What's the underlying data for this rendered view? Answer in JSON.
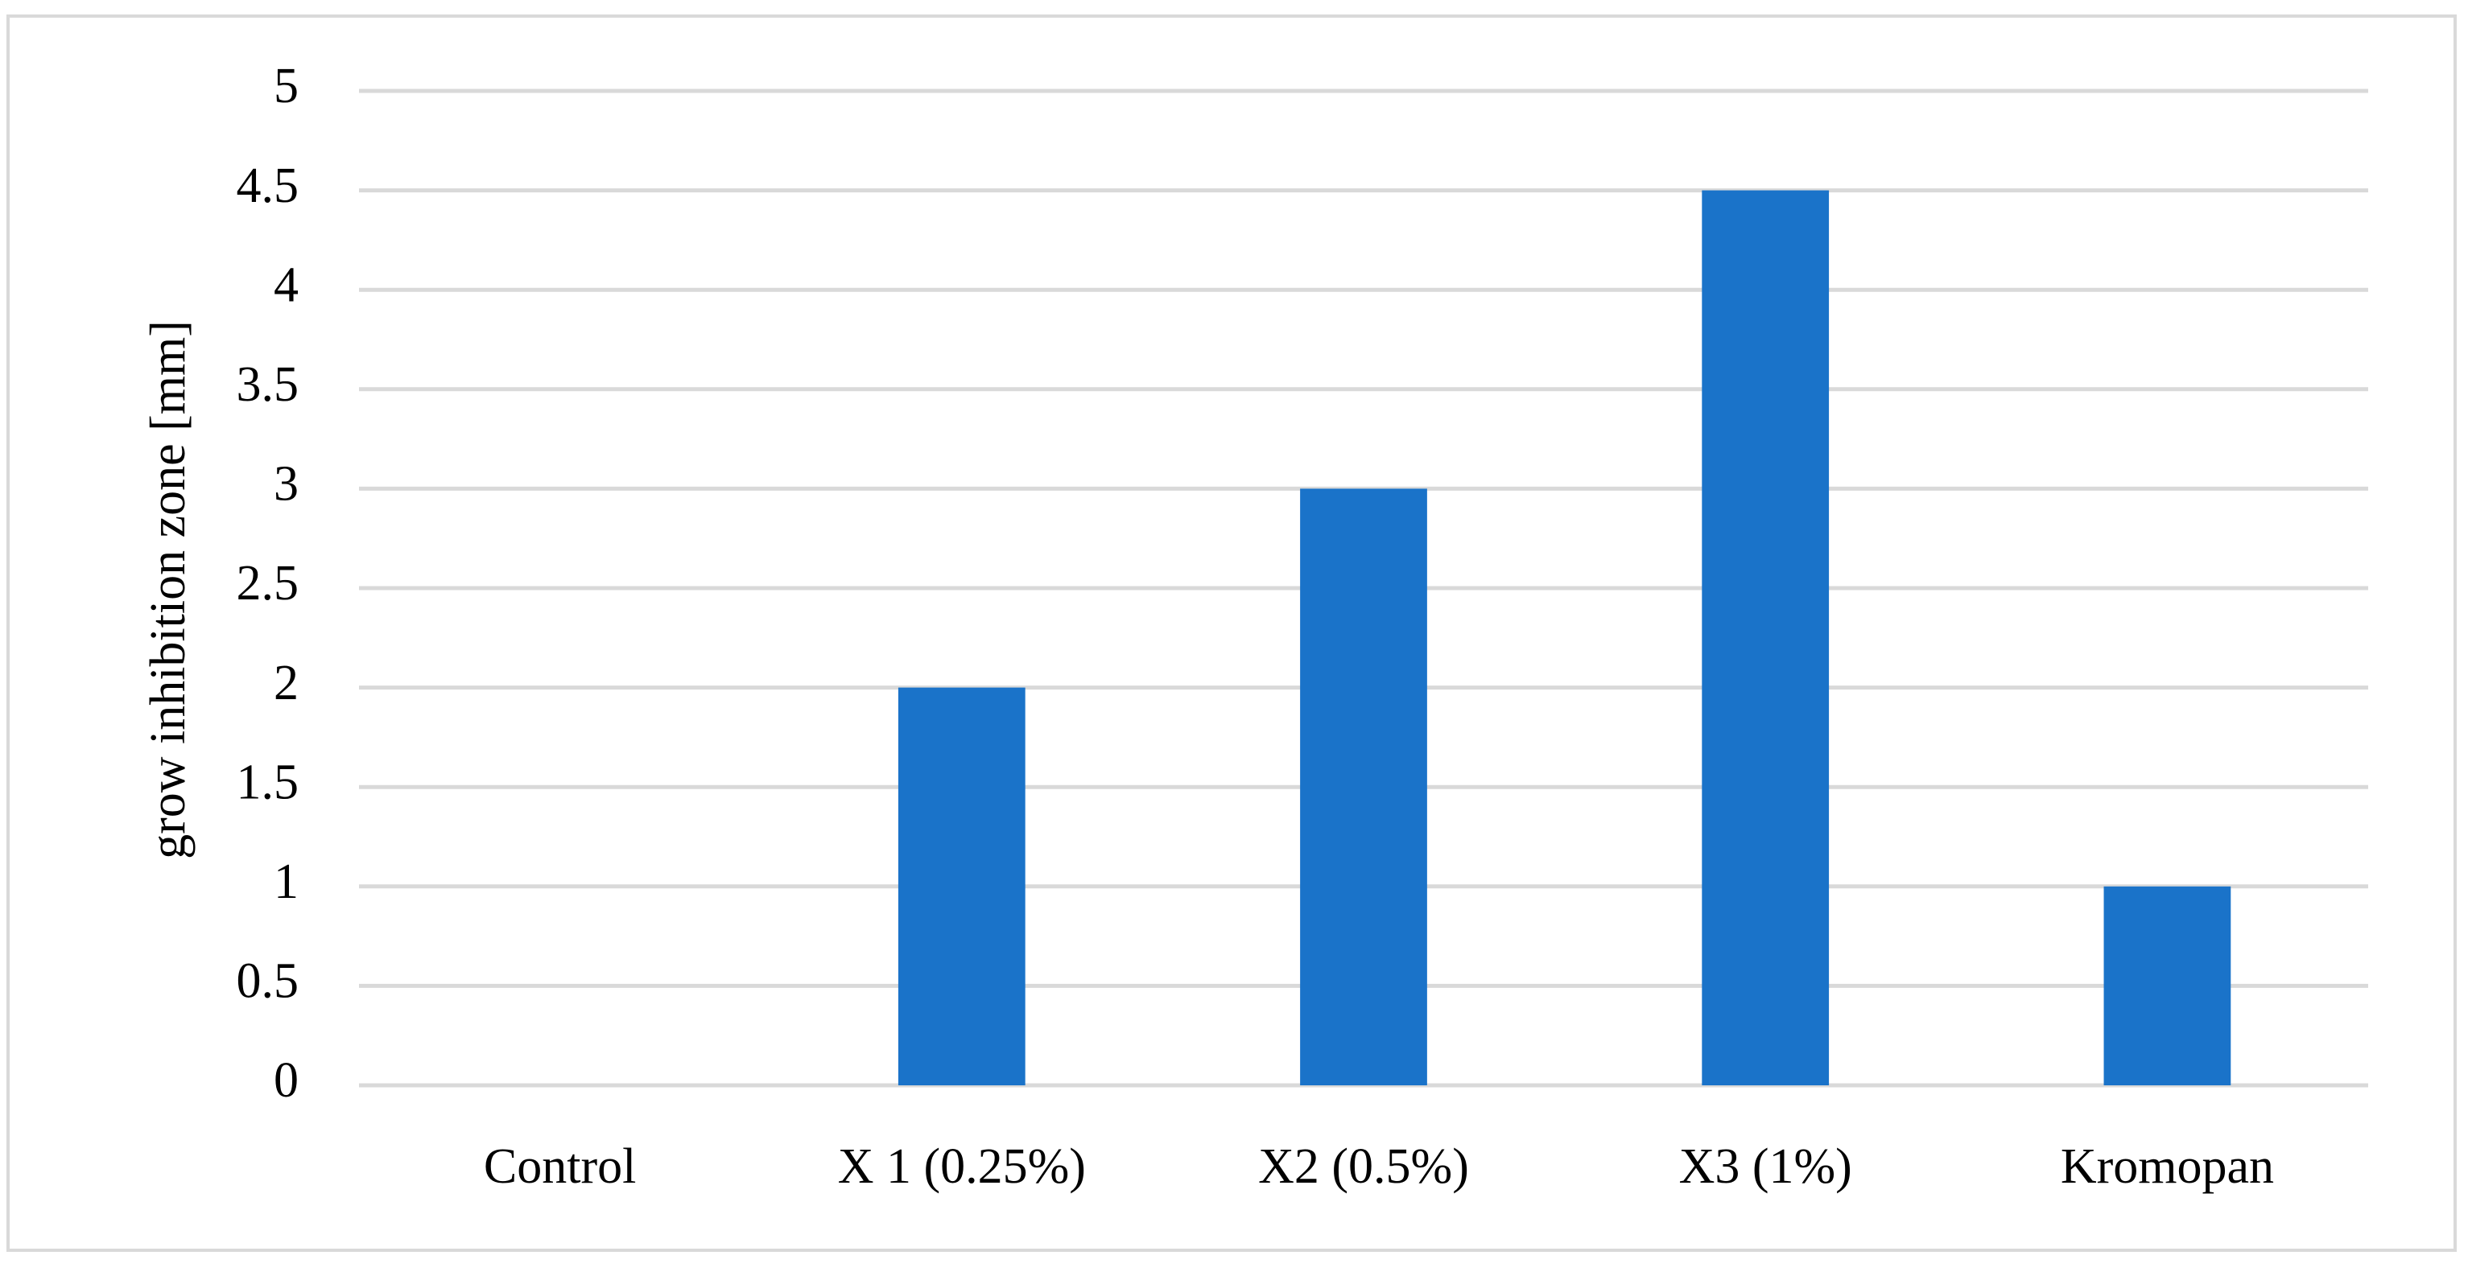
{
  "chart_data": {
    "type": "bar",
    "y_label": "grow inhibition zone [mm]",
    "categories": [
      "Control",
      "X 1 (0.25%)",
      "X2 (0.5%)",
      "X3 (1%)",
      "Kromopan"
    ],
    "values": [
      0,
      2,
      3,
      4.5,
      1
    ],
    "color": "#1a73c9",
    "ylim": [
      0,
      5
    ],
    "yticks": [
      0,
      0.5,
      1,
      1.5,
      2,
      2.5,
      3,
      3.5,
      4,
      4.5,
      5
    ],
    "grid": true
  }
}
